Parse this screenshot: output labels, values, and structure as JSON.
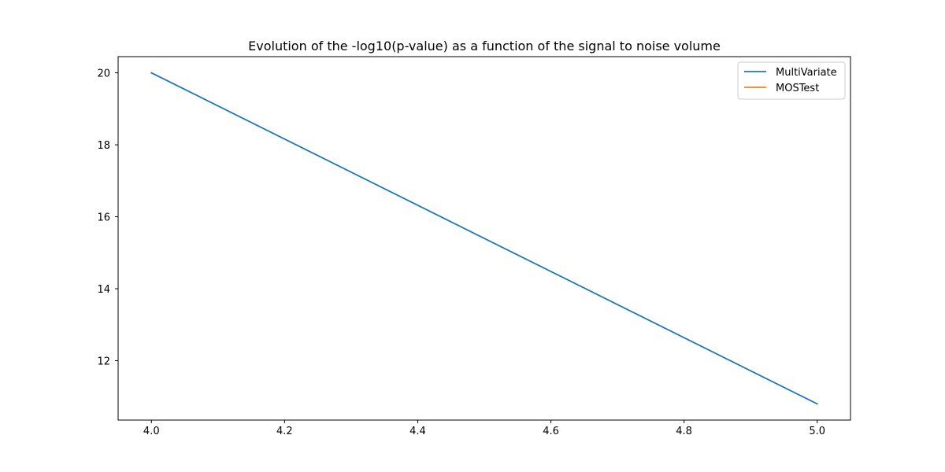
{
  "chart_data": {
    "type": "line",
    "title": "Evolution of the -log10(p-value) as a function of the signal to noise volume",
    "xlabel": "",
    "ylabel": "",
    "xlim": [
      3.95,
      5.05
    ],
    "ylim": [
      10.35,
      20.45
    ],
    "x_ticks": [
      "4.0",
      "4.2",
      "4.4",
      "4.6",
      "4.8",
      "5.0"
    ],
    "y_ticks": [
      "12",
      "14",
      "16",
      "18",
      "20"
    ],
    "grid": false,
    "legend_position": "top-right",
    "series": [
      {
        "name": "MultiVariate",
        "color": "#1f77b4",
        "x": [
          4.0,
          5.0
        ],
        "y": [
          20.0,
          10.8
        ]
      },
      {
        "name": "MOSTest",
        "color": "#ff7f0e",
        "x": [],
        "y": []
      }
    ]
  }
}
